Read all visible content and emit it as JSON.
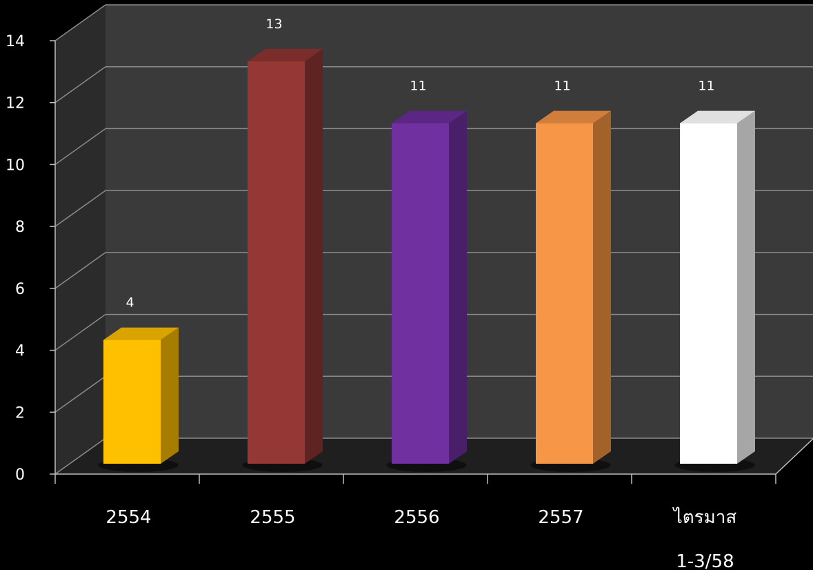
{
  "chart_data": {
    "type": "bar",
    "categories": [
      [
        "2554"
      ],
      [
        "2555"
      ],
      [
        "2556"
      ],
      [
        "2557"
      ],
      [
        "ไตรมาส",
        "1-3/58"
      ]
    ],
    "values": [
      4,
      13,
      11,
      11,
      11
    ],
    "data_labels": [
      "4",
      "13",
      "11",
      "11",
      "11"
    ],
    "bar_colors": [
      "#ffc000",
      "#953735",
      "#7030a0",
      "#f79646",
      "#ffffff"
    ],
    "bar_side_colors": [
      "#a67d00",
      "#5f2322",
      "#481f68",
      "#a26229",
      "#a6a6a6"
    ],
    "bar_top_colors": [
      "#d9a300",
      "#7a2d2b",
      "#5c2784",
      "#d17d3b",
      "#e0e0e0"
    ],
    "y_ticks": [
      "0",
      "2",
      "4",
      "6",
      "8",
      "10",
      "12",
      "14"
    ],
    "ylim": [
      0,
      14
    ],
    "grid": true,
    "legend": "none",
    "three_d": true,
    "background_color": "#000000",
    "plot_back_color": "#3a3a3a",
    "plot_side_color": "#2b2b2b",
    "gridline_color": "#8c8c8c",
    "title": "",
    "xlabel": "",
    "ylabel": ""
  }
}
